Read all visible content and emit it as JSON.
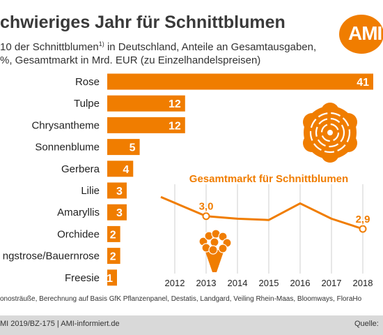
{
  "header": {
    "title": "chwieriges Jahr für Schnittblumen",
    "subtitle_line1_pre": "10 der Schnittblumen",
    "subtitle_sup": "1)",
    "subtitle_line1_post": " in Deutschland, Anteile an Gesamtausgaben,",
    "subtitle_line2": "%, Gesamtmarkt in Mrd. EUR (zu Einzelhandelspreisen)",
    "logo_text": "AMI"
  },
  "colors": {
    "accent": "#f07d00",
    "bar_label_text": "#ffffff",
    "category_text": "#222222",
    "grid": "#cfcfcf",
    "flower_fill": "#ffffff"
  },
  "icons": {
    "rose": "rose-icon",
    "bouquet": "bouquet-icon"
  },
  "chart_data": [
    {
      "type": "bar",
      "orientation": "horizontal",
      "categories": [
        "Rose",
        "Tulpe",
        "Chrysantheme",
        "Sonnenblume",
        "Gerbera",
        "Lilie",
        "Amaryllis",
        "Orchidee",
        "ngstrose/Bauernrose",
        "Freesie"
      ],
      "values": [
        41,
        12,
        12,
        5,
        4,
        3,
        3,
        2,
        2,
        1
      ],
      "xlim": [
        0,
        41
      ],
      "title": "",
      "xlabel": "",
      "ylabel": "",
      "data_labels": true
    },
    {
      "type": "line",
      "title": "Gesamtmarkt für Schnittblumen",
      "x": [
        "2012",
        "2013",
        "2014",
        "2015",
        "2016",
        "2017",
        "2018"
      ],
      "series": [
        {
          "values": [
            3.15,
            3.0,
            2.98,
            2.97,
            3.1,
            2.98,
            2.9
          ]
        }
      ],
      "point_labels": [
        {
          "x": "2013",
          "text": "3,0"
        },
        {
          "x": "2018",
          "text": "2,9"
        }
      ],
      "ylim": [
        2.55,
        3.25
      ],
      "grid": "vertical",
      "xlabel": "",
      "ylabel": ""
    }
  ],
  "footer": {
    "footnote": "onosträuße, Berechnung auf Basis GfK Pflanzenpanel, Destatis, Landgard, Veiling Rhein-Maas, Bloomways, FloraHo",
    "credit": "MI 2019/BZ-175 | AMI-informiert.de",
    "source_label": "Quelle:"
  }
}
